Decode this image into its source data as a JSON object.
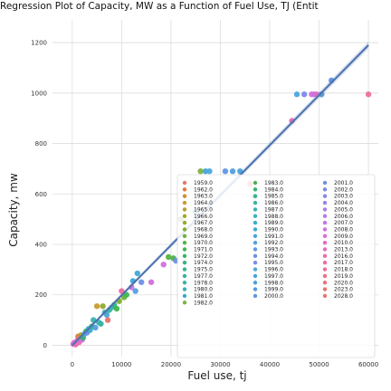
{
  "chart_data": {
    "type": "scatter",
    "title": "Regression Plot of Capacity, MW as a Function of Fuel Use, TJ (Entit",
    "xlabel": "Fuel use, tj",
    "ylabel": "Capacity, mw",
    "xlim": [
      -4000,
      62000
    ],
    "ylim": [
      -45,
      1290
    ],
    "xticks": [
      "0",
      "10000",
      "20000",
      "30000",
      "40000",
      "50000",
      "60000"
    ],
    "yticks": [
      "0",
      "200",
      "400",
      "600",
      "800",
      "1000",
      "1200"
    ],
    "xtick_values": [
      0,
      10000,
      20000,
      30000,
      40000,
      50000,
      60000
    ],
    "ytick_values": [
      0,
      200,
      400,
      600,
      800,
      1000,
      1200
    ],
    "grid": true,
    "legend_position": "lower-right",
    "regression_line": {
      "x": [
        0,
        60000
      ],
      "y": [
        0,
        1190
      ],
      "color": "#4c72b0"
    },
    "series": [
      {
        "name": "1959.0",
        "color": "#e8756f"
      },
      {
        "name": "1962.0",
        "color": "#e3793e"
      },
      {
        "name": "1963.0",
        "color": "#d98a32"
      },
      {
        "name": "1964.0",
        "color": "#c99a2c"
      },
      {
        "name": "1965.0",
        "color": "#b59f2a"
      },
      {
        "name": "1966.0",
        "color": "#a3a52c"
      },
      {
        "name": "1967.0",
        "color": "#93aa2e"
      },
      {
        "name": "1968.0",
        "color": "#7fb02f"
      },
      {
        "name": "1969.0",
        "color": "#6bb336"
      },
      {
        "name": "1970.0",
        "color": "#54b53f"
      },
      {
        "name": "1971.0",
        "color": "#3fb64d"
      },
      {
        "name": "1972.0",
        "color": "#35b56a"
      },
      {
        "name": "1974.0",
        "color": "#34b47e"
      },
      {
        "name": "1975.0",
        "color": "#36b48c"
      },
      {
        "name": "1977.0",
        "color": "#38b39b"
      },
      {
        "name": "1978.0",
        "color": "#39b2a9"
      },
      {
        "name": "1980.0",
        "color": "#3ab0b6"
      },
      {
        "name": "1981.0",
        "color": "#3aaec2"
      },
      {
        "name": "1982.0",
        "color": "#7cb342"
      },
      {
        "name": "1983.0",
        "color": "#4fb052"
      },
      {
        "name": "1984.0",
        "color": "#37b36a"
      },
      {
        "name": "1985.0",
        "color": "#36b485"
      },
      {
        "name": "1986.0",
        "color": "#38b39e"
      },
      {
        "name": "1987.0",
        "color": "#39b2ae"
      },
      {
        "name": "1988.0",
        "color": "#3ab0bd"
      },
      {
        "name": "1989.0",
        "color": "#3badcb"
      },
      {
        "name": "1990.0",
        "color": "#3ea9d6"
      },
      {
        "name": "1991.0",
        "color": "#47a4de"
      },
      {
        "name": "1992.0",
        "color": "#539ee3"
      },
      {
        "name": "1993.0",
        "color": "#6097e6"
      },
      {
        "name": "1994.0",
        "color": "#6d90e8"
      },
      {
        "name": "1995.0",
        "color": "#7d89ea"
      },
      {
        "name": "1996.0",
        "color": "#4ea7db"
      },
      {
        "name": "1997.0",
        "color": "#45a3dd"
      },
      {
        "name": "1998.0",
        "color": "#4a9fe0"
      },
      {
        "name": "1999.0",
        "color": "#529ae2"
      },
      {
        "name": "2000.0",
        "color": "#5d96e4"
      },
      {
        "name": "2001.0",
        "color": "#6a92e6"
      },
      {
        "name": "2002.0",
        "color": "#778de8"
      },
      {
        "name": "2003.0",
        "color": "#8888ea"
      },
      {
        "name": "2004.0",
        "color": "#9983ea"
      },
      {
        "name": "2005.0",
        "color": "#a97eea"
      },
      {
        "name": "2006.0",
        "color": "#b879e7"
      },
      {
        "name": "2007.0",
        "color": "#c674e3"
      },
      {
        "name": "2008.0",
        "color": "#d170dc"
      },
      {
        "name": "2009.0",
        "color": "#db6dd3"
      },
      {
        "name": "2010.0",
        "color": "#e36bc8"
      },
      {
        "name": "2013.0",
        "color": "#e86abb"
      },
      {
        "name": "2016.0",
        "color": "#eb6bad"
      },
      {
        "name": "2017.0",
        "color": "#ec6da0"
      },
      {
        "name": "2018.0",
        "color": "#ec6f93"
      },
      {
        "name": "2019.0",
        "color": "#eb7186"
      },
      {
        "name": "2020.0",
        "color": "#e9737a"
      },
      {
        "name": "2023.0",
        "color": "#e7746f"
      },
      {
        "name": "2028.0",
        "color": "#e8756f"
      }
    ],
    "points": [
      {
        "x": 200,
        "y": 5,
        "s": 45
      },
      {
        "x": 400,
        "y": 10,
        "s": 45
      },
      {
        "x": 700,
        "y": 3,
        "s": 48
      },
      {
        "x": 900,
        "y": 15,
        "s": 46
      },
      {
        "x": 1100,
        "y": 20,
        "s": 44
      },
      {
        "x": 1200,
        "y": 35,
        "s": 1
      },
      {
        "x": 1400,
        "y": 12,
        "s": 47
      },
      {
        "x": 1600,
        "y": 25,
        "s": 45
      },
      {
        "x": 1800,
        "y": 40,
        "s": 5
      },
      {
        "x": 2000,
        "y": 22,
        "s": 44
      },
      {
        "x": 2200,
        "y": 30,
        "s": 20
      },
      {
        "x": 2500,
        "y": 45,
        "s": 28
      },
      {
        "x": 2800,
        "y": 55,
        "s": 10
      },
      {
        "x": 3000,
        "y": 50,
        "s": 30
      },
      {
        "x": 3300,
        "y": 65,
        "s": 25
      },
      {
        "x": 3600,
        "y": 60,
        "s": 26
      },
      {
        "x": 4000,
        "y": 75,
        "s": 12
      },
      {
        "x": 4300,
        "y": 100,
        "s": 15
      },
      {
        "x": 4700,
        "y": 70,
        "s": 28
      },
      {
        "x": 5000,
        "y": 155,
        "s": 3
      },
      {
        "x": 5400,
        "y": 90,
        "s": 16
      },
      {
        "x": 5800,
        "y": 85,
        "s": 22
      },
      {
        "x": 6200,
        "y": 155,
        "s": 6
      },
      {
        "x": 6600,
        "y": 130,
        "s": 16
      },
      {
        "x": 7000,
        "y": 120,
        "s": 32
      },
      {
        "x": 7200,
        "y": 100,
        "s": 53
      },
      {
        "x": 7500,
        "y": 140,
        "s": 14
      },
      {
        "x": 8000,
        "y": 150,
        "s": 16
      },
      {
        "x": 8500,
        "y": 160,
        "s": 12
      },
      {
        "x": 9000,
        "y": 145,
        "s": 10
      },
      {
        "x": 9500,
        "y": 175,
        "s": 7
      },
      {
        "x": 10000,
        "y": 215,
        "s": 49
      },
      {
        "x": 10500,
        "y": 190,
        "s": 8
      },
      {
        "x": 11000,
        "y": 200,
        "s": 10
      },
      {
        "x": 12000,
        "y": 230,
        "s": 44
      },
      {
        "x": 12300,
        "y": 255,
        "s": 26
      },
      {
        "x": 12800,
        "y": 215,
        "s": 28
      },
      {
        "x": 13200,
        "y": 285,
        "s": 26
      },
      {
        "x": 14000,
        "y": 250,
        "s": 30
      },
      {
        "x": 16000,
        "y": 250,
        "s": 44
      },
      {
        "x": 18500,
        "y": 320,
        "s": 44
      },
      {
        "x": 19500,
        "y": 350,
        "s": 9
      },
      {
        "x": 20500,
        "y": 345,
        "s": 19
      },
      {
        "x": 21000,
        "y": 335,
        "s": 30
      },
      {
        "x": 22000,
        "y": 500,
        "s": 18
      },
      {
        "x": 25000,
        "y": 530,
        "s": 33
      },
      {
        "x": 26000,
        "y": 690,
        "s": 18
      },
      {
        "x": 27000,
        "y": 690,
        "s": 33
      },
      {
        "x": 27800,
        "y": 690,
        "s": 32
      },
      {
        "x": 31000,
        "y": 690,
        "s": 29
      },
      {
        "x": 32500,
        "y": 690,
        "s": 28
      },
      {
        "x": 34000,
        "y": 690,
        "s": 27
      },
      {
        "x": 36000,
        "y": 640,
        "s": 53
      },
      {
        "x": 37000,
        "y": 590,
        "s": 31
      },
      {
        "x": 44500,
        "y": 890,
        "s": 47
      },
      {
        "x": 45500,
        "y": 995,
        "s": 32
      },
      {
        "x": 47000,
        "y": 995,
        "s": 31
      },
      {
        "x": 48500,
        "y": 995,
        "s": 44
      },
      {
        "x": 49000,
        "y": 995,
        "s": 43
      },
      {
        "x": 49500,
        "y": 995,
        "s": 46
      },
      {
        "x": 50500,
        "y": 995,
        "s": 48
      },
      {
        "x": 50500,
        "y": 995,
        "s": 32
      },
      {
        "x": 52500,
        "y": 1050,
        "s": 36
      },
      {
        "x": 60000,
        "y": 995,
        "s": 50
      }
    ]
  }
}
